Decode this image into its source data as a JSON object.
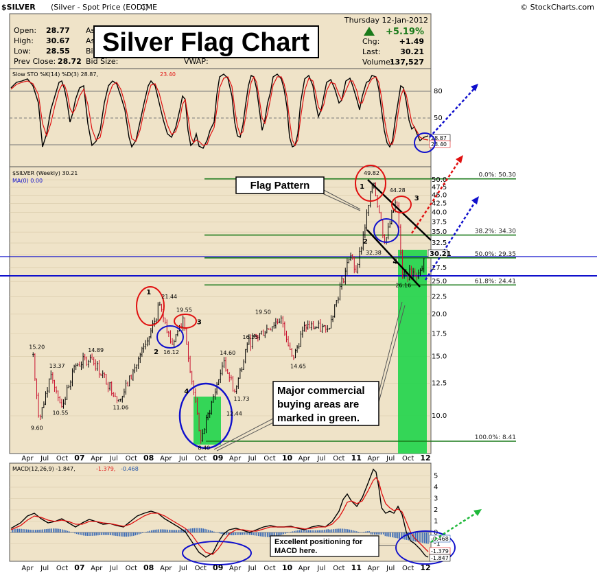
{
  "header": {
    "symbol": "$SILVER",
    "name": "(Silver - Spot Price (EOD))",
    "exchange": "CME",
    "copyright": "© StockCharts.com",
    "date": "Thursday  12-Jan-2012",
    "open_label": "Open:",
    "open": "28.77",
    "high_label": "High:",
    "high": "30.67",
    "low_label": "Low:",
    "low": "28.55",
    "prev_label": "Prev Close:",
    "prev": "28.72",
    "ask_label": "As",
    "ask2_label": "As",
    "bid_label": "Bid",
    "bidsize_label": "Bid Size:",
    "vwap_label": "VWAP:",
    "pct_change": "+5.19%",
    "chg_label": "Chg:",
    "chg": "+1.49",
    "last_label": "Last:",
    "last": "30.21",
    "vol_label": "Volume:",
    "volume": "137,527"
  },
  "title": "Silver Flag Chart",
  "sto": {
    "legend_a": "Slow STO %K(14) %D(3) 28.87,",
    "legend_b": "23.40",
    "k_value": "28.87",
    "d_value": "23.40",
    "levels": [
      "80",
      "50",
      "20"
    ]
  },
  "price": {
    "legend_main": "$SILVER (Weekly) 30.21",
    "legend_ma": "MA(0) 0.00",
    "last_box": "30.21"
  },
  "fib_labels": [
    "0.0%: 50.30",
    "38.2%: 34.30",
    "50.0%: 29.35",
    "61.8%: 24.41",
    "100.0%: 8.41"
  ],
  "annotations": {
    "flag": "Flag Pattern",
    "commercial_lines": [
      "Major commercial",
      "buying areas are",
      "marked in green."
    ],
    "macd_lines": [
      "Excellent positioning for",
      "MACD here."
    ]
  },
  "point_labels": [
    "15.20",
    "13.37",
    "10.55",
    "9.60",
    "14.89",
    "11.06",
    "21.44",
    "16.12",
    "19.55",
    "8.40",
    "14.60",
    "11.73",
    "16.25",
    "12.44",
    "19.50",
    "14.65",
    "49.82",
    "44.28",
    "32.38",
    "26.16"
  ],
  "wave_numbers": [
    "1",
    "2",
    "3",
    "4",
    "1",
    "2",
    "3",
    "4"
  ],
  "macd": {
    "legend_a": "MACD(12,26,9) -1.847,",
    "legend_b": "-1.379,",
    "legend_c": "-0.468",
    "values": [
      "-0.468",
      "-1.379",
      "-1.847"
    ],
    "ticks": [
      "5",
      "4",
      "3",
      "2",
      "1",
      "0",
      "-1"
    ]
  },
  "x_ticks": [
    "Apr",
    "Jul",
    "Oct",
    "07",
    "Apr",
    "Jul",
    "Oct",
    "08",
    "Apr",
    "Jul",
    "Oct",
    "09",
    "Apr",
    "Jul",
    "Oct",
    "10",
    "Apr",
    "Jul",
    "Oct",
    "11",
    "Apr",
    "Jul",
    "Oct",
    "12"
  ],
  "colors": {
    "panel_bg": "#efe3c8",
    "fib_green": "#1a7a1a",
    "highlight_green": "#1fd44a",
    "up_bar": "#000000",
    "down_bar": "#c8102e",
    "sto_k": "#000000",
    "sto_d": "#e01010",
    "blue_circle": "#1010cc",
    "red_circle": "#e01010"
  },
  "chart_data": {
    "type": "line",
    "title": "Silver Flag Chart",
    "xlabel": "",
    "ylabel": "",
    "scale": "log",
    "ylim": [
      8.0,
      50.0
    ],
    "y_ticks": [
      10.0,
      12.5,
      15.0,
      17.5,
      20.0,
      22.5,
      25.0,
      27.5,
      30.0,
      32.5,
      35.0,
      37.5,
      40.0,
      42.5,
      45.0,
      47.5,
      50.0
    ],
    "x_ticks": [
      "Apr",
      "Jul",
      "Oct",
      "07",
      "Apr",
      "Jul",
      "Oct",
      "08",
      "Apr",
      "Jul",
      "Oct",
      "09",
      "Apr",
      "Jul",
      "Oct",
      "10",
      "Apr",
      "Jul",
      "Oct",
      "11",
      "Apr",
      "Jul",
      "Oct",
      "12"
    ],
    "series": [
      {
        "name": "$SILVER (Weekly)",
        "x": [
          "2006-05",
          "2006-06",
          "2006-08",
          "2006-10",
          "2006-12",
          "2007-03",
          "2007-08",
          "2008-01",
          "2008-03",
          "2008-05",
          "2008-07",
          "2008-10",
          "2009-02",
          "2009-04",
          "2009-06",
          "2009-12",
          "2010-02",
          "2010-04",
          "2010-08",
          "2010-12",
          "2011-01",
          "2011-04",
          "2011-06",
          "2011-08",
          "2011-09",
          "2011-12",
          "2012-01"
        ],
        "values": [
          15.2,
          9.6,
          13.37,
          10.55,
          14.0,
          14.89,
          11.06,
          17.0,
          21.44,
          16.12,
          19.55,
          8.4,
          14.6,
          11.73,
          16.25,
          19.5,
          14.65,
          18.5,
          18.0,
          30.0,
          26.5,
          49.82,
          32.38,
          44.28,
          26.16,
          26.5,
          30.21
        ]
      }
    ],
    "fib_levels": [
      {
        "label": "0.0%",
        "value": 50.3
      },
      {
        "label": "38.2%",
        "value": 34.3
      },
      {
        "label": "50.0%",
        "value": 29.35
      },
      {
        "label": "61.8%",
        "value": 24.41
      },
      {
        "label": "100.0%",
        "value": 8.41
      }
    ],
    "stochastic": {
      "k": 28.87,
      "d": 23.4,
      "levels": [
        20,
        50,
        80
      ]
    },
    "macd": {
      "params": "12,26,9",
      "macd": -1.847,
      "signal": -1.379,
      "histogram": -0.468,
      "ylim": [
        -2,
        5.5
      ]
    }
  }
}
